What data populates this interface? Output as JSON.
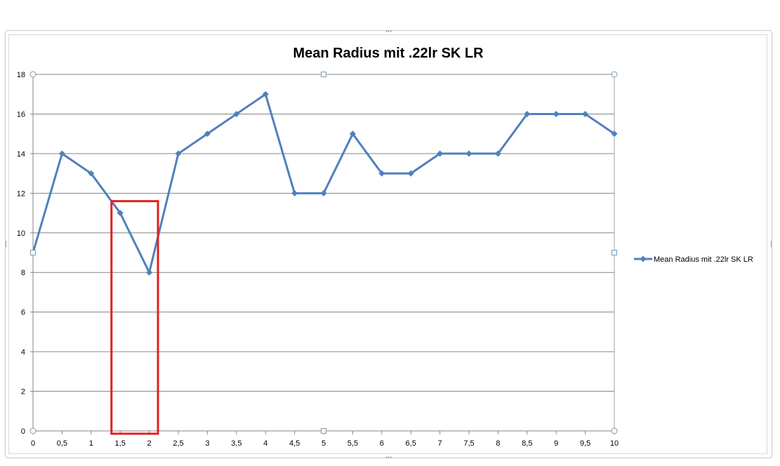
{
  "chart_data": {
    "type": "line",
    "title": "Mean Radius mit .22lr SK LR",
    "xlabel": "",
    "ylabel": "",
    "categories": [
      "0",
      "0,5",
      "1",
      "1,5",
      "2",
      "2,5",
      "3",
      "3,5",
      "4",
      "4,5",
      "5",
      "5,5",
      "6",
      "6,5",
      "7",
      "7,5",
      "8",
      "8,5",
      "9",
      "9,5",
      "10"
    ],
    "series": [
      {
        "name": "Mean Radius mit .22lr SK LR",
        "values": [
          9,
          14,
          13,
          11,
          8,
          14,
          15,
          16,
          17,
          12,
          12,
          15,
          13,
          13,
          14,
          14,
          14,
          16,
          16,
          16,
          15
        ],
        "color": "#4F81BD",
        "marker": "diamond"
      }
    ],
    "ylim": [
      0,
      18
    ],
    "yticks": [
      0,
      2,
      4,
      6,
      8,
      10,
      12,
      14,
      16,
      18
    ],
    "grid": true,
    "legend": "right",
    "highlight": {
      "color": "#E02020",
      "x_from": "1,5",
      "x_to": "2"
    }
  }
}
